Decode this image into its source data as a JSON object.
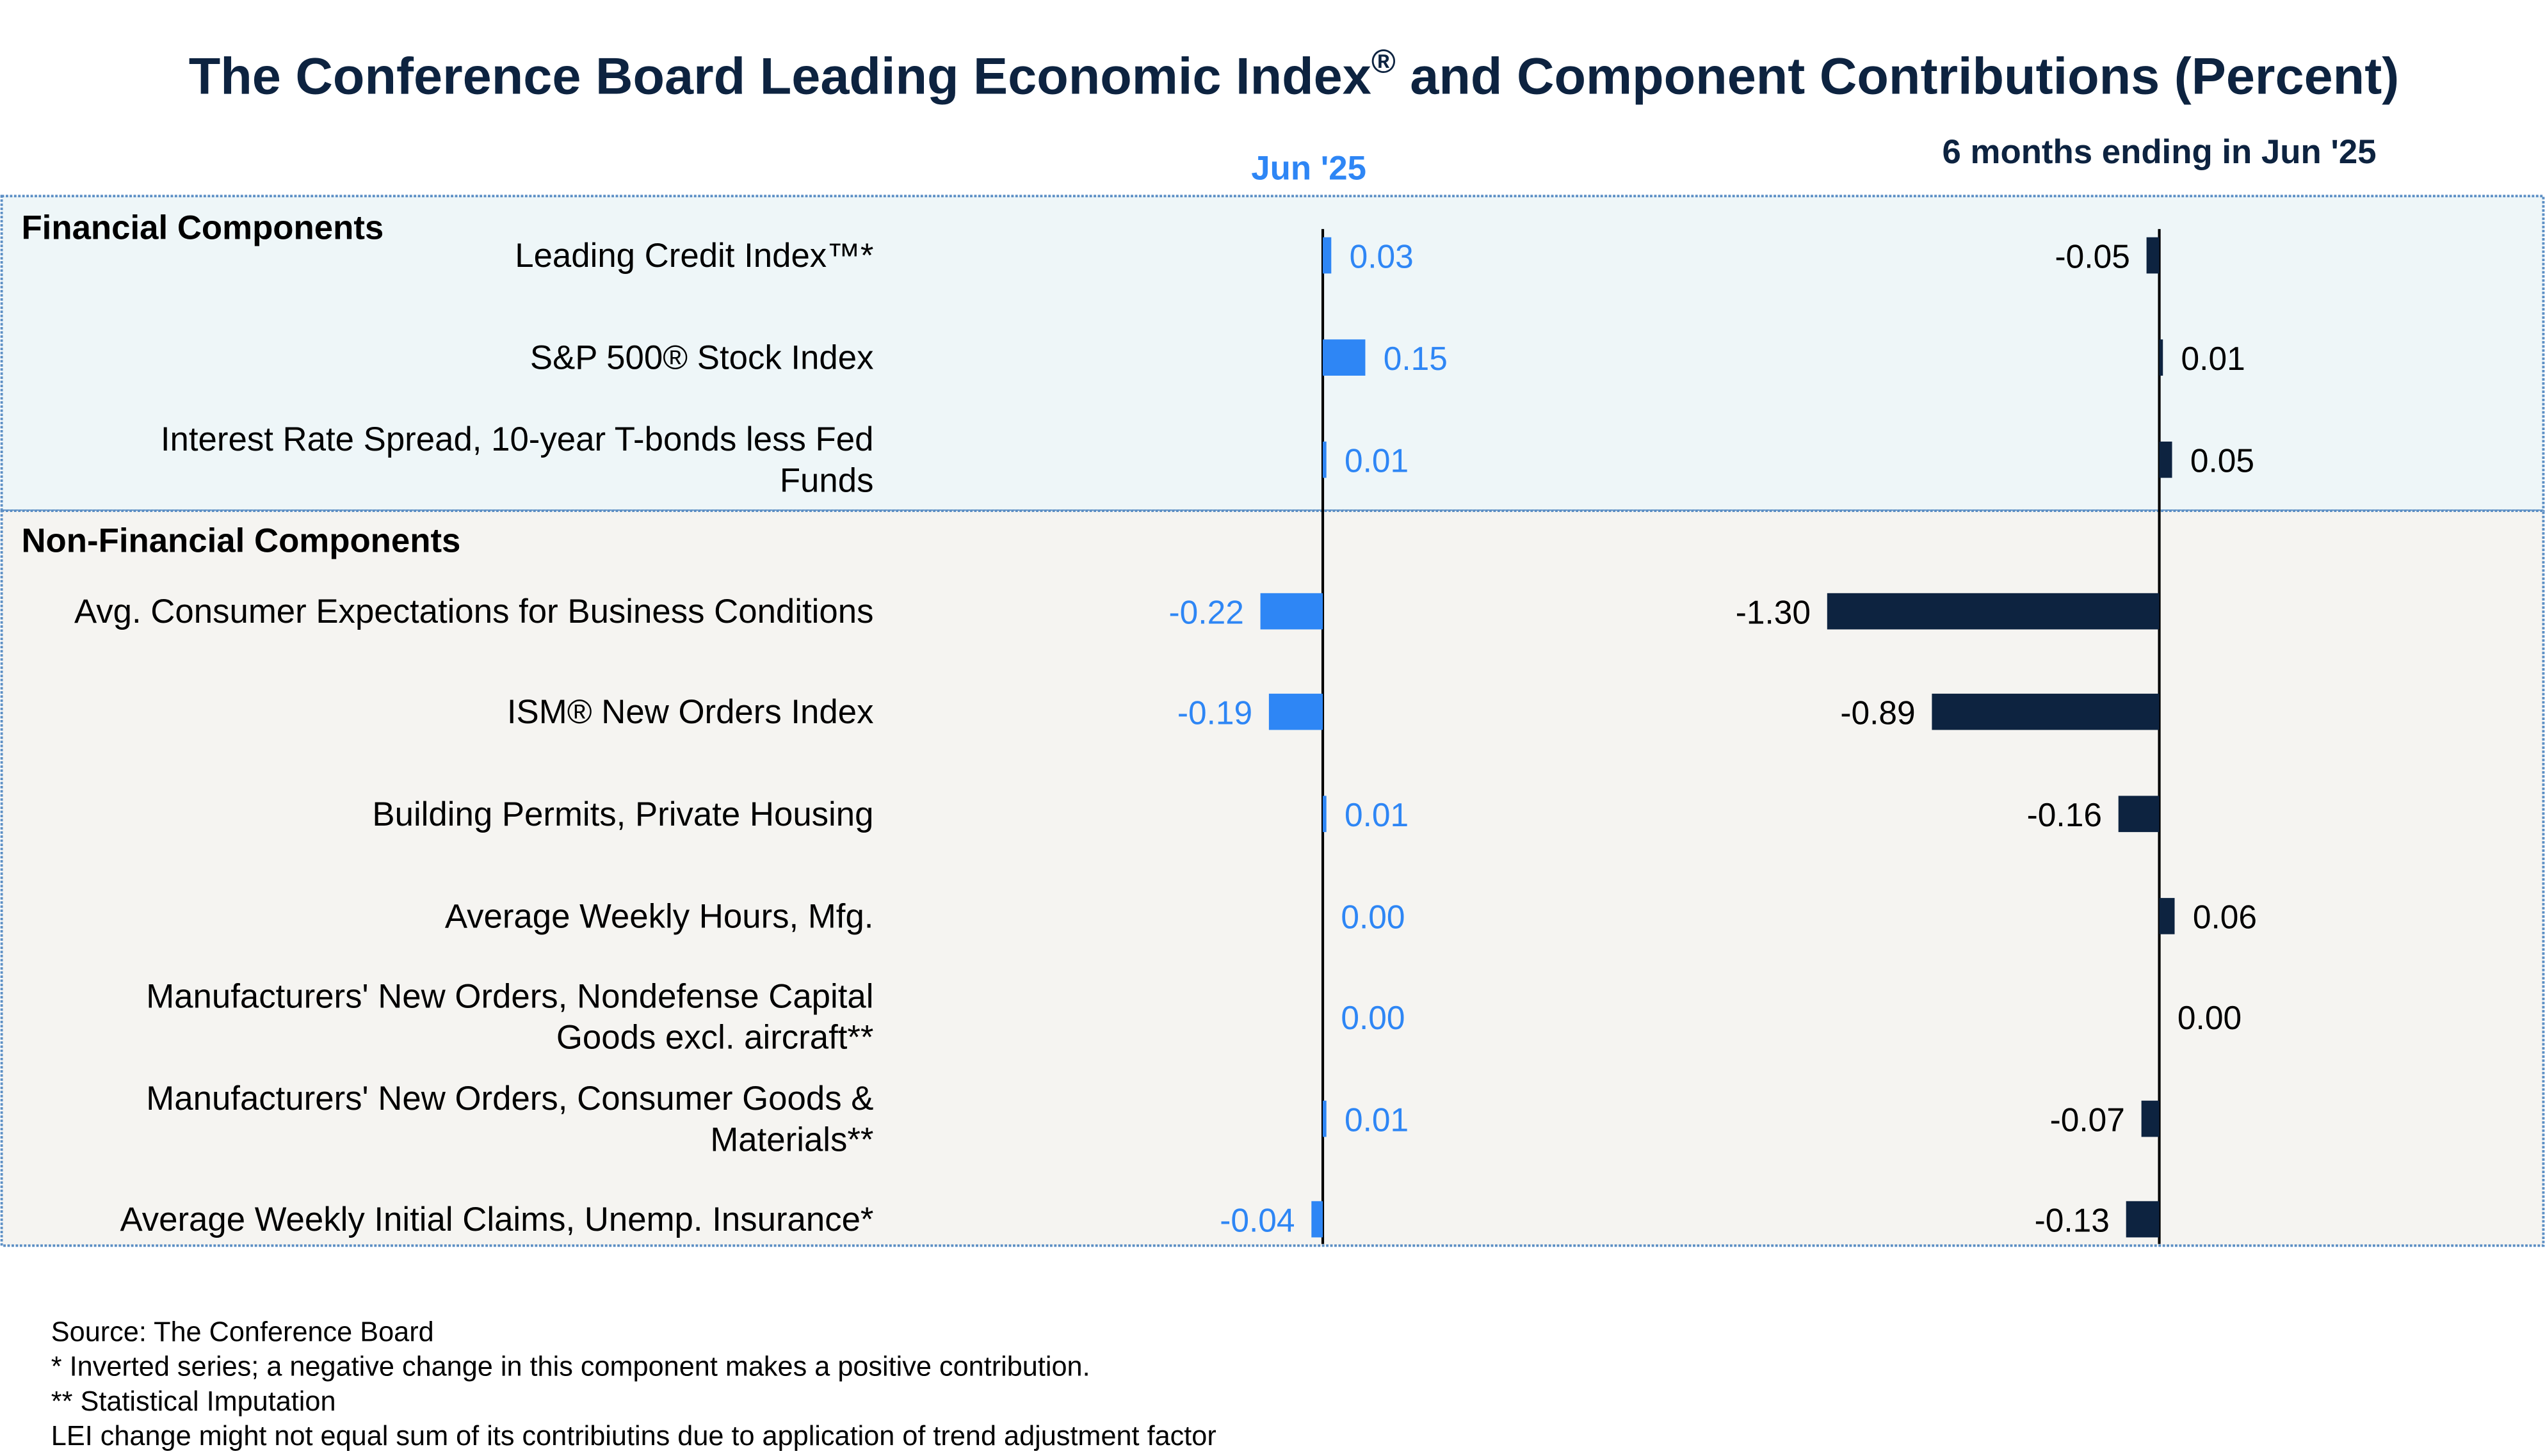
{
  "chart_data": {
    "type": "bar",
    "orientation": "horizontal",
    "title": "The Conference Board Leading Economic Index",
    "title_superscript": "®",
    "title_suffix": " and Component Contributions (Percent)",
    "column_headers": [
      "Jun  '25",
      "6 months ending in Jun  '25"
    ],
    "groups": [
      {
        "name": "Financial Components",
        "start": 0,
        "end": 2
      },
      {
        "name": "Non-Financial Components",
        "start": 3,
        "end": 9
      }
    ],
    "categories": [
      [
        "Leading Credit Index™*"
      ],
      [
        "S&P 500® Stock Index"
      ],
      [
        "Interest Rate Spread, 10-year T-bonds less Fed",
        "Funds"
      ],
      [
        "Avg. Consumer Expectations for Business Conditions"
      ],
      [
        "ISM® New Orders Index"
      ],
      [
        "Building Permits, Private Housing"
      ],
      [
        "Average Weekly Hours, Mfg."
      ],
      [
        "Manufacturers' New Orders, Nondefense Capital",
        "Goods excl. aircraft**"
      ],
      [
        "Manufacturers' New Orders, Consumer Goods &",
        "Materials**"
      ],
      [
        "Average Weekly Initial Claims, Unemp. Insurance*"
      ]
    ],
    "series": [
      {
        "name": "Jun  '25",
        "values": [
          0.03,
          0.15,
          0.01,
          -0.22,
          -0.19,
          0.01,
          0.0,
          0.0,
          0.01,
          -0.04
        ],
        "labels": [
          "0.03",
          "0.15",
          "0.01",
          "-0.22",
          "-0.19",
          "0.01",
          "0.00",
          "0.00",
          "0.01",
          "-0.04"
        ],
        "color": "#2e86f5"
      },
      {
        "name": "6 months ending in Jun  '25",
        "values": [
          -0.05,
          0.01,
          0.05,
          -1.3,
          -0.89,
          -0.16,
          0.06,
          0.0,
          -0.07,
          -0.13
        ],
        "labels": [
          "-0.05",
          "0.01",
          "0.05",
          "-1.30",
          "-0.89",
          "-0.16",
          "0.06",
          "0.00",
          "-0.07",
          "-0.13"
        ],
        "color": "#0d2340"
      }
    ],
    "colors": {
      "title": "#0d2340",
      "financial_bg": "#eef6f8",
      "non_financial_bg": "#f5f4f1",
      "border": "#5b8ec4",
      "axis": "#000000"
    },
    "footnotes": [
      "Source: The Conference Board",
      "*  Inverted series; a negative change in this component makes a positive contribution.",
      "**  Statistical Imputation",
      "LEI change might not equal sum of its contribiutins due to application of trend adjustment factor"
    ]
  }
}
